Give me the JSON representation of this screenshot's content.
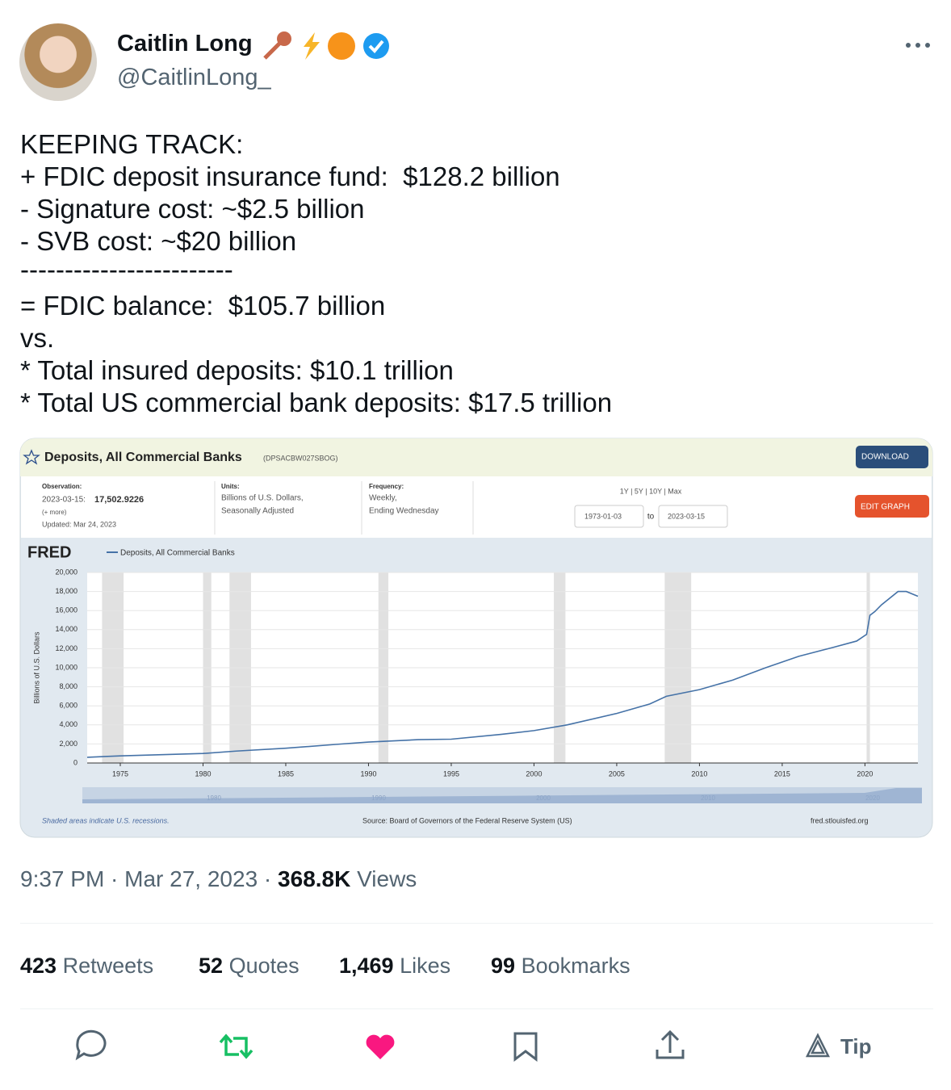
{
  "author": {
    "name": "Caitlin Long",
    "handle": "@CaitlinLong_"
  },
  "tweet_text": [
    "KEEPING TRACK:",
    "+ FDIC deposit insurance fund:  $128.2 billion",
    "- Signature cost: ~$2.5 billion",
    "- SVB cost: ~$20 billion",
    "------------------------",
    "= FDIC balance:  $105.7 billion",
    "vs.",
    "* Total insured deposits: $10.1 trillion",
    "* Total US commercial bank deposits: $17.5 trillion"
  ],
  "fred": {
    "title": "Deposits, All Commercial Banks",
    "series_id": "(DPSACBW027SBOG)",
    "download": "DOWNLOAD",
    "observation_label": "Observation:",
    "observation_date": "2023-03-15:",
    "observation_value": "17,502.9226",
    "more": "(+ more)",
    "updated": "Updated: Mar 24, 2023",
    "units_label": "Units:",
    "units": [
      "Billions of U.S. Dollars,",
      "Seasonally Adjusted"
    ],
    "frequency_label": "Frequency:",
    "frequency": [
      "Weekly,",
      "Ending Wednesday"
    ],
    "ranges": "1Y | 5Y | 10Y | Max",
    "date_from": "1973-01-03",
    "to": "to",
    "date_to": "2023-03-15",
    "edit": "EDIT GRAPH",
    "logo": "FRED",
    "navigator_labels": [
      "1980",
      "1990",
      "2000",
      "2010",
      "2020"
    ],
    "recession_note": "Shaded areas indicate U.S. recessions.",
    "source": "Source: Board of Governors of the Federal Reserve System (US)",
    "site": "fred.stlouisfed.org"
  },
  "chart_data": {
    "type": "line",
    "y_label": "Billions of U.S. Dollars",
    "x": [
      1973,
      1975,
      1980,
      1982,
      1985,
      1988,
      1990,
      1993,
      1995,
      1998,
      2000,
      2002,
      2005,
      2007,
      2008,
      2010,
      2012,
      2014,
      2016,
      2018,
      2019.5,
      2020.1,
      2020.3,
      2020.6,
      2021,
      2022,
      2022.5,
      2023.2
    ],
    "series": [
      {
        "name": "Deposits, All Commercial Banks",
        "color": "#4572a7",
        "values": [
          600,
          750,
          1000,
          1250,
          1550,
          1950,
          2200,
          2450,
          2500,
          3000,
          3400,
          4000,
          5200,
          6200,
          7000,
          7700,
          8700,
          10000,
          11200,
          12100,
          12800,
          13500,
          15500,
          15900,
          16600,
          18000,
          18000,
          17500
        ]
      }
    ],
    "recessions": [
      [
        1973.9,
        1975.2
      ],
      [
        1980,
        1980.5
      ],
      [
        1981.6,
        1982.9
      ],
      [
        1990.6,
        1991.2
      ],
      [
        2001.2,
        2001.9
      ],
      [
        2007.9,
        2009.5
      ],
      [
        2020.1,
        2020.3
      ]
    ],
    "xlim": [
      1973,
      2023.2
    ],
    "xticks": [
      1975,
      1980,
      1985,
      1990,
      1995,
      2000,
      2005,
      2010,
      2015,
      2020
    ],
    "ylim": [
      0,
      20000
    ],
    "yticks": [
      0,
      {
        "value": 2000,
        "label": "2,000"
      },
      {
        "value": 4000,
        "label": "4,000"
      },
      {
        "value": 6000,
        "label": "6,000"
      },
      {
        "value": 8000,
        "label": "8,000"
      },
      {
        "value": 10000,
        "label": "10,000"
      },
      {
        "value": 12000,
        "label": "12,000"
      },
      {
        "value": 14000,
        "label": "14,000"
      },
      {
        "value": 16000,
        "label": "16,000"
      },
      {
        "value": 18000,
        "label": "18,000"
      },
      {
        "value": 20000,
        "label": "20,000"
      }
    ],
    "grid": true
  },
  "meta": {
    "time": "9:37 PM · Mar 27, 2023 ·",
    "views": "368.8K",
    "views_label": "Views"
  },
  "stats": [
    {
      "count": "423",
      "label": "Retweets"
    },
    {
      "count": "52",
      "label": "Quotes"
    },
    {
      "count": "1,469",
      "label": "Likes"
    },
    {
      "count": "99",
      "label": "Bookmarks"
    }
  ],
  "tip": "Tip"
}
